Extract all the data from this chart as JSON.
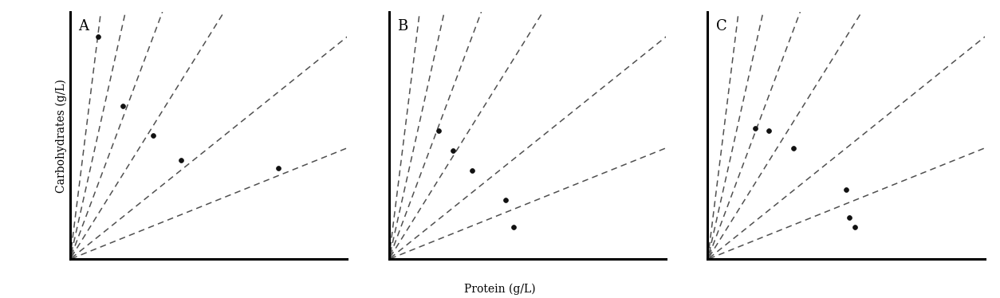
{
  "xlabel": "Protein (g/L)",
  "ylabel": "Carbohydrates (g/L)",
  "background_color": "#ffffff",
  "panels": [
    "A",
    "B",
    "C"
  ],
  "ray_slopes": [
    9.0,
    5.0,
    3.0,
    1.8,
    0.9,
    0.45
  ],
  "ray_color": "#505050",
  "ray_lw": 1.1,
  "dot_color": "#111111",
  "dot_size": 18,
  "panel_A_dots": [
    [
      0.1,
      0.9
    ],
    [
      0.19,
      0.62
    ],
    [
      0.3,
      0.5
    ],
    [
      0.4,
      0.4
    ],
    [
      0.75,
      0.37
    ]
  ],
  "panel_B_dots": [
    [
      0.18,
      0.52
    ],
    [
      0.23,
      0.44
    ],
    [
      0.3,
      0.36
    ],
    [
      0.42,
      0.24
    ],
    [
      0.45,
      0.13
    ]
  ],
  "panel_C_dots": [
    [
      0.17,
      0.53
    ],
    [
      0.22,
      0.52
    ],
    [
      0.31,
      0.45
    ],
    [
      0.5,
      0.28
    ],
    [
      0.51,
      0.17
    ],
    [
      0.53,
      0.13
    ]
  ],
  "xlim": [
    0,
    1.0
  ],
  "ylim": [
    0,
    1.0
  ],
  "spine_lw": 2.2,
  "panel_label_fontsize": 13,
  "axis_label_fontsize": 10
}
